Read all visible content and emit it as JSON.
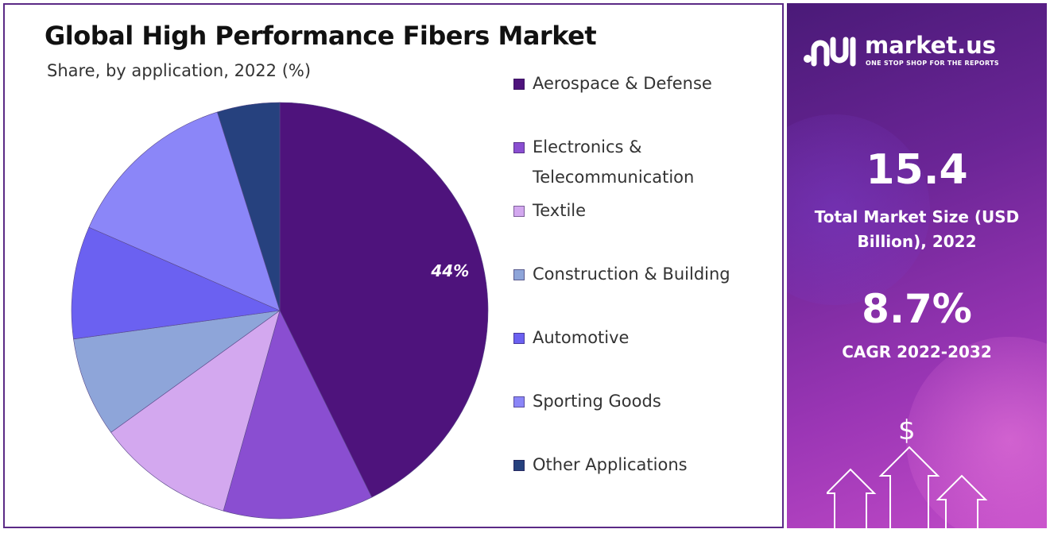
{
  "chart_data": {
    "type": "pie",
    "title": "Global High Performance Fibers Market",
    "subtitle": "Share, by application, 2022 (%)",
    "categories": [
      "Aerospace & Defense",
      "Electronics & Telecommunication",
      "Textile",
      "Construction & Building",
      "Automotive",
      "Sporting Goods",
      "Other Applications"
    ],
    "values": [
      44,
      12,
      11,
      8,
      9,
      14,
      5
    ],
    "colors": [
      "#4e137c",
      "#8a4ed1",
      "#d3a8ef",
      "#8ea5d9",
      "#6b61f1",
      "#8b86f8",
      "#26417e"
    ],
    "data_labels": [
      "44%",
      "",
      "",
      "",
      "",
      "",
      ""
    ],
    "legend_position": "right"
  },
  "legend": {
    "items": [
      {
        "label": "Aerospace & Defense",
        "color": "#4e137c"
      },
      {
        "label": "Electronics & Telecommunication",
        "color": "#8a4ed1"
      },
      {
        "label": "Textile",
        "color": "#d3a8ef"
      },
      {
        "label": "Construction & Building",
        "color": "#8ea5d9"
      },
      {
        "label": "Automotive",
        "color": "#6b61f1"
      },
      {
        "label": "Sporting Goods",
        "color": "#8b86f8"
      },
      {
        "label": "Other Applications",
        "color": "#26417e"
      }
    ]
  },
  "brand": {
    "name": "market.us",
    "tagline": "ONE STOP SHOP FOR THE REPORTS"
  },
  "stats": {
    "market_size_value": "15.4",
    "market_size_label": "Total Market Size (USD Billion), 2022",
    "cagr_value": "8.7%",
    "cagr_label": "CAGR 2022-2032"
  },
  "icons": {
    "dollar": "$"
  },
  "colors": {
    "border": "#5b2a86",
    "side_panel": "#7a2aa0"
  }
}
